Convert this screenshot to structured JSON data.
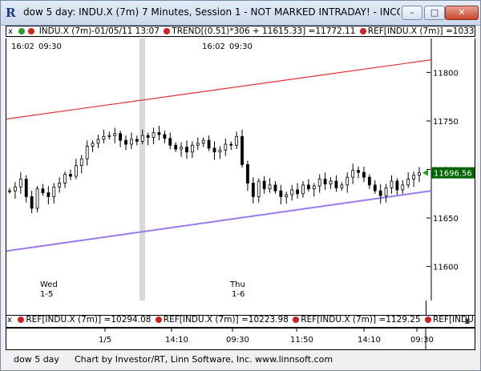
{
  "window": {
    "title": "dow 5 day: INDU.X (7m) 7 Minutes, Session 1 - NOT MARKED INTRADAY! - INCO...",
    "minimize": "–",
    "maximize": "□",
    "close": "✕"
  },
  "top_strip": {
    "close": "x",
    "symbol": "INDU.X (7m)-01/05/11 13:07",
    "trend": "TREND[(0.51)*306 + 11615.33] =11772.11",
    "ref": "REF[INDU.X (7m)] =10334.8..."
  },
  "lower_strip": {
    "close": "x",
    "ref1": "REF[INDU.X (7m)] =10294.08",
    "ref2": "REF[INDU.X (7m)] =10223.98",
    "ref3": "REF[INDU.X (7m)] =1129.25",
    "ref4": "REF[INDU.X (7..."
  },
  "chart_top_labels": {
    "left_time_1": "16:02",
    "left_time_2": "09:30",
    "mid_time_1": "16:02",
    "mid_time_2": "09:30"
  },
  "day_labels": {
    "wed": "Wed",
    "wed_date": "1-5",
    "thu": "Thu",
    "thu_date": "1-6"
  },
  "x_axis": {
    "labels": [
      "1/5",
      "14:10",
      "09:30",
      "11:50",
      "14:10",
      "09:30"
    ]
  },
  "status_bar": {
    "left": "dow 5 day",
    "right": "Chart by Investor/RT, Linn Software, Inc. www.linnsoft.com"
  },
  "colors": {
    "upper_trend": "#e03030",
    "lower_trend": "#9a79ee",
    "last_price_box": "#006400",
    "candle": "#000000",
    "highlight_band": "#d9d9d9"
  },
  "chart_data": {
    "type": "candlestick",
    "y_axis": {
      "ticks": [
        11800,
        11750,
        11700,
        11650,
        11600
      ],
      "range": [
        11565,
        11835
      ]
    },
    "last_price": 11696.56,
    "upper_trendline": {
      "start": 11752,
      "end": 11813
    },
    "lower_trendline": {
      "start": 11616,
      "end": 11678
    },
    "close_path": [
      11678,
      11682,
      11690,
      11672,
      11660,
      11680,
      11676,
      11672,
      11682,
      11686,
      11695,
      11693,
      11704,
      11711,
      11724,
      11727,
      11731,
      11734,
      11735,
      11737,
      11730,
      11726,
      11731,
      11729,
      11735,
      11733,
      11738,
      11736,
      11732,
      11725,
      11721,
      11723,
      11718,
      11725,
      11727,
      11730,
      11722,
      11718,
      11720,
      11726,
      11725,
      11734,
      11705,
      11686,
      11672,
      11688,
      11680,
      11684,
      11678,
      11672,
      11674,
      11679,
      11675,
      11684,
      11680,
      11683,
      11690,
      11685,
      11688,
      11681,
      11684,
      11692,
      11699,
      11697,
      11692,
      11684,
      11678,
      11673,
      11681,
      11688,
      11679,
      11684,
      11690,
      11694,
      11696.56
    ]
  }
}
